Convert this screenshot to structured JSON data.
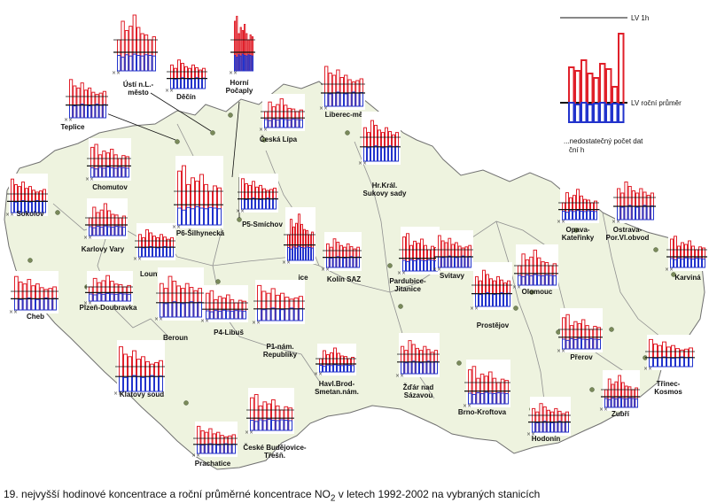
{
  "caption": {
    "text_before": "19. nejvyšší hodinové koncentrace a roční průměrné koncentrace NO",
    "subscript": "2",
    "text_after": " v letech 1992-2002 na vybraných stanicích"
  },
  "legend": {
    "lv1h": "LV 1h",
    "lv_annual": "LV roční průměr",
    "insufficient_note_line1": "...nedostatečný počet dat",
    "insufficient_note_line2": "ční h",
    "hourly_values": [
      0.62,
      0.58,
      0.7,
      0.55,
      0.5,
      0.66,
      0.6,
      0.4,
      1.0
    ],
    "annual_values": [
      0.22,
      0.2,
      0.22,
      0.2,
      0.21,
      0.22,
      0.2,
      0.21,
      0.2
    ]
  },
  "colors": {
    "hourly_bar": "#e0202a",
    "annual_bar": "#2233cc",
    "land": "#eef3df",
    "border": "#707070",
    "white_panel": "#ffffff",
    "station_dot": "#7a8a5a"
  },
  "stations": [
    {
      "id": "teplice",
      "label": "Teplice",
      "label2": ""
    },
    {
      "id": "usti",
      "label": "Ústí n.L.-",
      "label2": "město"
    },
    {
      "id": "decin",
      "label": "Děčín",
      "label2": ""
    },
    {
      "id": "horni-pocaply",
      "label": "Horní",
      "label2": "Počaply"
    },
    {
      "id": "liberec",
      "label": "Liberec-město",
      "label2": ""
    },
    {
      "id": "ceska-lipa",
      "label": "Česká Lípa",
      "label2": ""
    },
    {
      "id": "hk-sukovy",
      "label": "Hr.Král.",
      "label2": "Sukovy sady"
    },
    {
      "id": "chomutov",
      "label": "Chomutov",
      "label2": ""
    },
    {
      "id": "sokolov",
      "label": "Sokolov",
      "label2": ""
    },
    {
      "id": "karlovy-vary",
      "label": "Karlovy Vary",
      "label2": ""
    },
    {
      "id": "louny",
      "label": "Louny",
      "label2": ""
    },
    {
      "id": "p6",
      "label": "P6-Šilhynecká",
      "label2": ""
    },
    {
      "id": "p5",
      "label": "P5-Smíchov",
      "label2": ""
    },
    {
      "id": "kolin-rice",
      "label": "ice",
      "label2": ""
    },
    {
      "id": "kolin-saz",
      "label": "Kolín SAZ",
      "label2": ""
    },
    {
      "id": "pardubice",
      "label": "Pardubice-",
      "label2": "Jitanice"
    },
    {
      "id": "svitavy",
      "label": "Svitavy",
      "label2": ""
    },
    {
      "id": "opava",
      "label": "Opava-",
      "label2": "Kateřinky"
    },
    {
      "id": "ostrava",
      "label": "Ostrava-",
      "label2": "Por.Vl.obvod"
    },
    {
      "id": "karvina",
      "label": "Karviná",
      "label2": ""
    },
    {
      "id": "cheb",
      "label": "Cheb",
      "label2": ""
    },
    {
      "id": "plzen",
      "label": "Plzeň-Doubravka",
      "label2": ""
    },
    {
      "id": "beroun",
      "label": "Beroun",
      "label2": ""
    },
    {
      "id": "p4",
      "label": "P4-Libuš",
      "label2": ""
    },
    {
      "id": "p1",
      "label": "P1-nám.",
      "label2": "Republiky"
    },
    {
      "id": "olomouc",
      "label": "Olomouc",
      "label2": ""
    },
    {
      "id": "prostejov",
      "label": "Prostějov",
      "label2": ""
    },
    {
      "id": "prerov",
      "label": "Přerov",
      "label2": ""
    },
    {
      "id": "klatovy",
      "label": "Klatovy soud",
      "label2": ""
    },
    {
      "id": "havlbrod",
      "label": "Havl.Brod-",
      "label2": "Smetan.nám."
    },
    {
      "id": "zdar",
      "label": "Žďár nad",
      "label2": "Sázavou"
    },
    {
      "id": "brno",
      "label": "Brno-Kroftova",
      "label2": ""
    },
    {
      "id": "trinec",
      "label": "Třinec-",
      "label2": "Kosmos"
    },
    {
      "id": "zlin",
      "label": "Zubří",
      "label2": ""
    },
    {
      "id": "hodonin",
      "label": "Hodonín",
      "label2": ""
    },
    {
      "id": "cbudejovice",
      "label": "České Budějovice-",
      "label2": "Třešň."
    },
    {
      "id": "prachatice",
      "label": "Prachatice",
      "label2": ""
    }
  ]
}
